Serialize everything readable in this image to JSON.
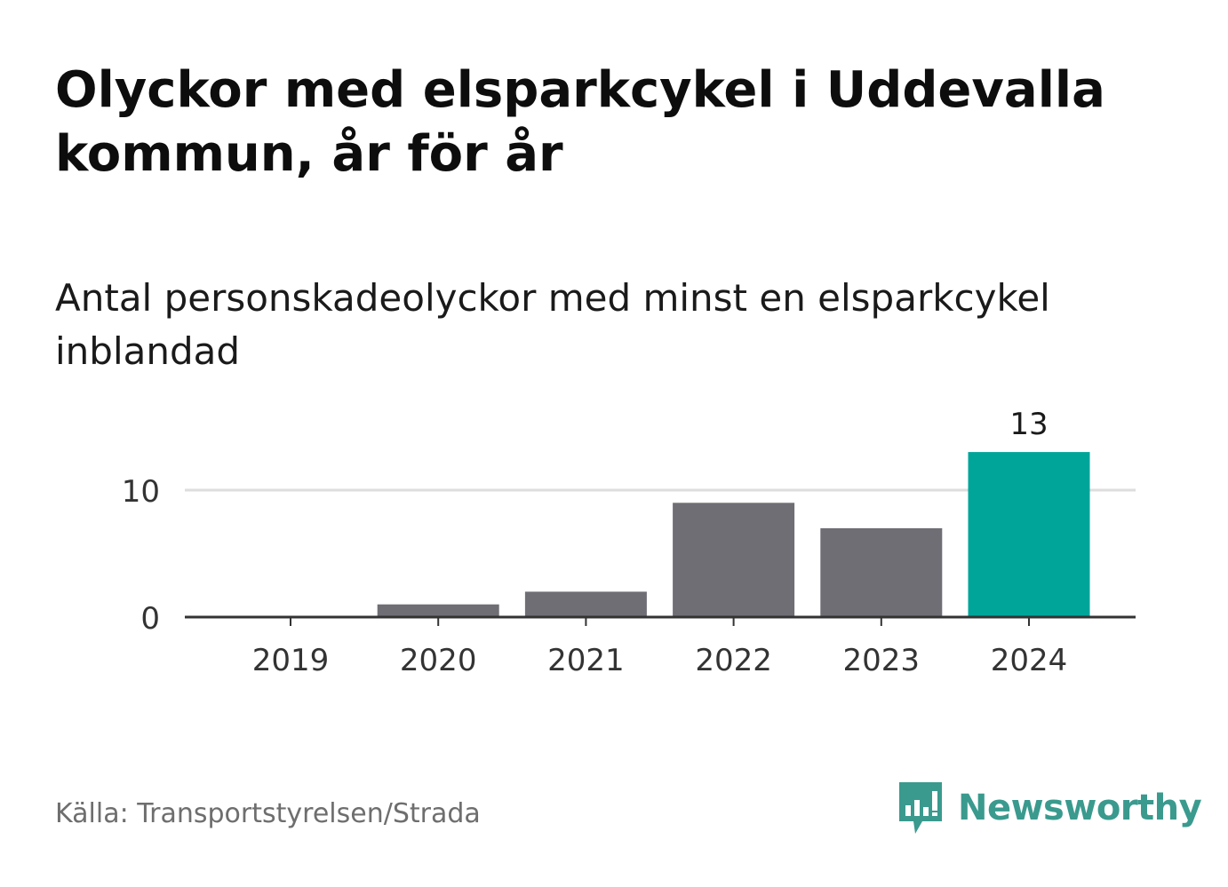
{
  "header": {
    "title": "Olyckor med elsparkcykel i Uddevalla kommun, år för år",
    "subtitle": "Antal personskadeolyckor med minst en elsparkcykel inblandad"
  },
  "footer": {
    "source": "Källa: Transportstyrelsen/Strada",
    "brand": "Newsworthy",
    "brand_icon": "newsworthy-logo-icon"
  },
  "colors": {
    "bar": "#6f6e74",
    "highlight": "#00a59a",
    "grid": "#dddddd",
    "axis": "#333333",
    "brand": "#3a9a8e"
  },
  "chart_data": {
    "type": "bar",
    "categories": [
      "2019",
      "2020",
      "2021",
      "2022",
      "2023",
      "2024"
    ],
    "values": [
      0,
      1,
      2,
      9,
      7,
      13
    ],
    "highlight_index": 5,
    "data_labels": [
      {
        "index": 5,
        "text": "13"
      }
    ],
    "y_ticks": [
      0,
      10
    ],
    "ylim": [
      0,
      13
    ],
    "grid": true,
    "legend": "none"
  }
}
